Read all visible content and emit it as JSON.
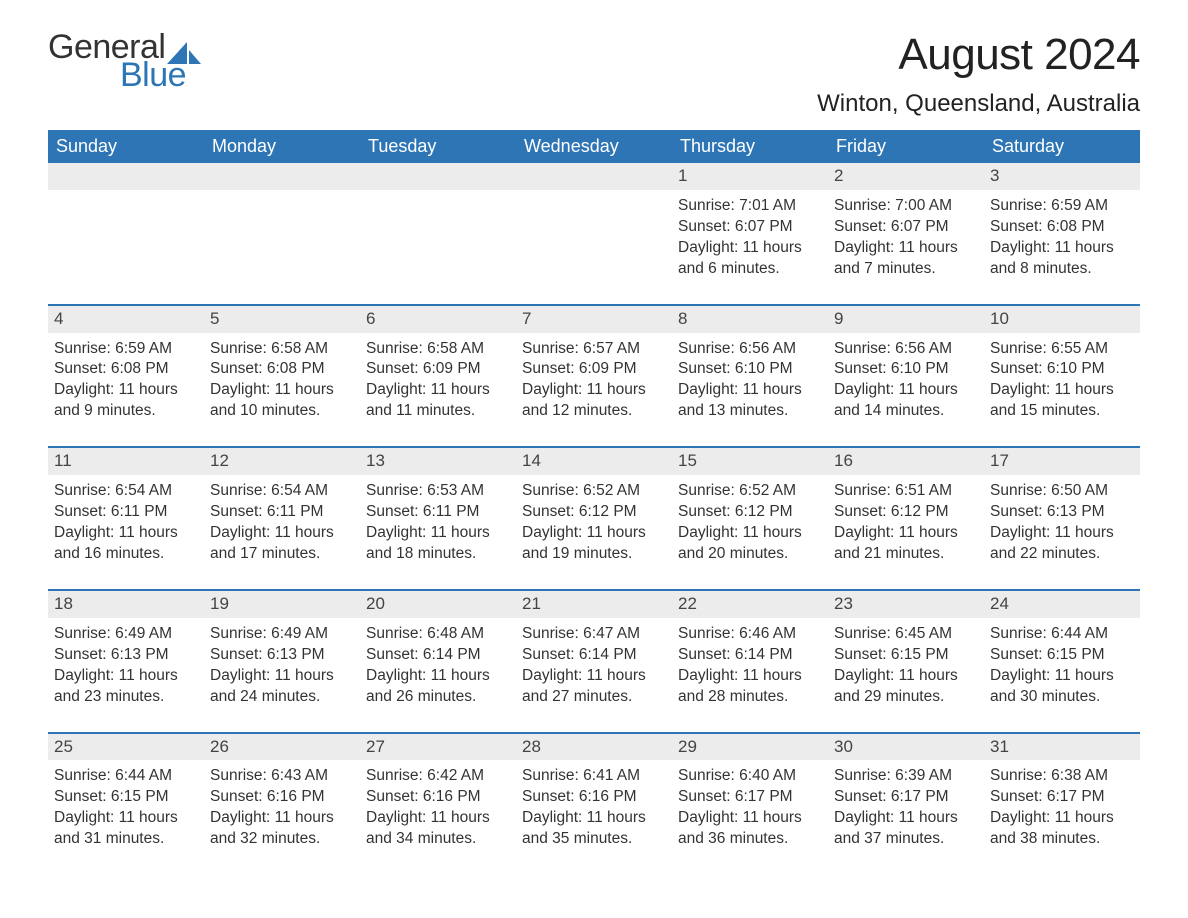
{
  "brand": {
    "general": "General",
    "blue": "Blue",
    "sail_color": "#2e75b6"
  },
  "title": "August 2024",
  "location": "Winton, Queensland, Australia",
  "columns": [
    "Sunday",
    "Monday",
    "Tuesday",
    "Wednesday",
    "Thursday",
    "Friday",
    "Saturday"
  ],
  "colors": {
    "header_bg": "#2e75b6",
    "header_text": "#ffffff",
    "row_divider": "#2e75b6",
    "daynum_bg": "#ececec",
    "body_text": "#333333",
    "background": "#ffffff"
  },
  "weeks": [
    [
      {
        "empty": true
      },
      {
        "empty": true
      },
      {
        "empty": true
      },
      {
        "empty": true
      },
      {
        "day": "1",
        "sunrise": "Sunrise: 7:01 AM",
        "sunset": "Sunset: 6:07 PM",
        "dl1": "Daylight: 11 hours",
        "dl2": "and 6 minutes."
      },
      {
        "day": "2",
        "sunrise": "Sunrise: 7:00 AM",
        "sunset": "Sunset: 6:07 PM",
        "dl1": "Daylight: 11 hours",
        "dl2": "and 7 minutes."
      },
      {
        "day": "3",
        "sunrise": "Sunrise: 6:59 AM",
        "sunset": "Sunset: 6:08 PM",
        "dl1": "Daylight: 11 hours",
        "dl2": "and 8 minutes."
      }
    ],
    [
      {
        "day": "4",
        "sunrise": "Sunrise: 6:59 AM",
        "sunset": "Sunset: 6:08 PM",
        "dl1": "Daylight: 11 hours",
        "dl2": "and 9 minutes."
      },
      {
        "day": "5",
        "sunrise": "Sunrise: 6:58 AM",
        "sunset": "Sunset: 6:08 PM",
        "dl1": "Daylight: 11 hours",
        "dl2": "and 10 minutes."
      },
      {
        "day": "6",
        "sunrise": "Sunrise: 6:58 AM",
        "sunset": "Sunset: 6:09 PM",
        "dl1": "Daylight: 11 hours",
        "dl2": "and 11 minutes."
      },
      {
        "day": "7",
        "sunrise": "Sunrise: 6:57 AM",
        "sunset": "Sunset: 6:09 PM",
        "dl1": "Daylight: 11 hours",
        "dl2": "and 12 minutes."
      },
      {
        "day": "8",
        "sunrise": "Sunrise: 6:56 AM",
        "sunset": "Sunset: 6:10 PM",
        "dl1": "Daylight: 11 hours",
        "dl2": "and 13 minutes."
      },
      {
        "day": "9",
        "sunrise": "Sunrise: 6:56 AM",
        "sunset": "Sunset: 6:10 PM",
        "dl1": "Daylight: 11 hours",
        "dl2": "and 14 minutes."
      },
      {
        "day": "10",
        "sunrise": "Sunrise: 6:55 AM",
        "sunset": "Sunset: 6:10 PM",
        "dl1": "Daylight: 11 hours",
        "dl2": "and 15 minutes."
      }
    ],
    [
      {
        "day": "11",
        "sunrise": "Sunrise: 6:54 AM",
        "sunset": "Sunset: 6:11 PM",
        "dl1": "Daylight: 11 hours",
        "dl2": "and 16 minutes."
      },
      {
        "day": "12",
        "sunrise": "Sunrise: 6:54 AM",
        "sunset": "Sunset: 6:11 PM",
        "dl1": "Daylight: 11 hours",
        "dl2": "and 17 minutes."
      },
      {
        "day": "13",
        "sunrise": "Sunrise: 6:53 AM",
        "sunset": "Sunset: 6:11 PM",
        "dl1": "Daylight: 11 hours",
        "dl2": "and 18 minutes."
      },
      {
        "day": "14",
        "sunrise": "Sunrise: 6:52 AM",
        "sunset": "Sunset: 6:12 PM",
        "dl1": "Daylight: 11 hours",
        "dl2": "and 19 minutes."
      },
      {
        "day": "15",
        "sunrise": "Sunrise: 6:52 AM",
        "sunset": "Sunset: 6:12 PM",
        "dl1": "Daylight: 11 hours",
        "dl2": "and 20 minutes."
      },
      {
        "day": "16",
        "sunrise": "Sunrise: 6:51 AM",
        "sunset": "Sunset: 6:12 PM",
        "dl1": "Daylight: 11 hours",
        "dl2": "and 21 minutes."
      },
      {
        "day": "17",
        "sunrise": "Sunrise: 6:50 AM",
        "sunset": "Sunset: 6:13 PM",
        "dl1": "Daylight: 11 hours",
        "dl2": "and 22 minutes."
      }
    ],
    [
      {
        "day": "18",
        "sunrise": "Sunrise: 6:49 AM",
        "sunset": "Sunset: 6:13 PM",
        "dl1": "Daylight: 11 hours",
        "dl2": "and 23 minutes."
      },
      {
        "day": "19",
        "sunrise": "Sunrise: 6:49 AM",
        "sunset": "Sunset: 6:13 PM",
        "dl1": "Daylight: 11 hours",
        "dl2": "and 24 minutes."
      },
      {
        "day": "20",
        "sunrise": "Sunrise: 6:48 AM",
        "sunset": "Sunset: 6:14 PM",
        "dl1": "Daylight: 11 hours",
        "dl2": "and 26 minutes."
      },
      {
        "day": "21",
        "sunrise": "Sunrise: 6:47 AM",
        "sunset": "Sunset: 6:14 PM",
        "dl1": "Daylight: 11 hours",
        "dl2": "and 27 minutes."
      },
      {
        "day": "22",
        "sunrise": "Sunrise: 6:46 AM",
        "sunset": "Sunset: 6:14 PM",
        "dl1": "Daylight: 11 hours",
        "dl2": "and 28 minutes."
      },
      {
        "day": "23",
        "sunrise": "Sunrise: 6:45 AM",
        "sunset": "Sunset: 6:15 PM",
        "dl1": "Daylight: 11 hours",
        "dl2": "and 29 minutes."
      },
      {
        "day": "24",
        "sunrise": "Sunrise: 6:44 AM",
        "sunset": "Sunset: 6:15 PM",
        "dl1": "Daylight: 11 hours",
        "dl2": "and 30 minutes."
      }
    ],
    [
      {
        "day": "25",
        "sunrise": "Sunrise: 6:44 AM",
        "sunset": "Sunset: 6:15 PM",
        "dl1": "Daylight: 11 hours",
        "dl2": "and 31 minutes."
      },
      {
        "day": "26",
        "sunrise": "Sunrise: 6:43 AM",
        "sunset": "Sunset: 6:16 PM",
        "dl1": "Daylight: 11 hours",
        "dl2": "and 32 minutes."
      },
      {
        "day": "27",
        "sunrise": "Sunrise: 6:42 AM",
        "sunset": "Sunset: 6:16 PM",
        "dl1": "Daylight: 11 hours",
        "dl2": "and 34 minutes."
      },
      {
        "day": "28",
        "sunrise": "Sunrise: 6:41 AM",
        "sunset": "Sunset: 6:16 PM",
        "dl1": "Daylight: 11 hours",
        "dl2": "and 35 minutes."
      },
      {
        "day": "29",
        "sunrise": "Sunrise: 6:40 AM",
        "sunset": "Sunset: 6:17 PM",
        "dl1": "Daylight: 11 hours",
        "dl2": "and 36 minutes."
      },
      {
        "day": "30",
        "sunrise": "Sunrise: 6:39 AM",
        "sunset": "Sunset: 6:17 PM",
        "dl1": "Daylight: 11 hours",
        "dl2": "and 37 minutes."
      },
      {
        "day": "31",
        "sunrise": "Sunrise: 6:38 AM",
        "sunset": "Sunset: 6:17 PM",
        "dl1": "Daylight: 11 hours",
        "dl2": "and 38 minutes."
      }
    ]
  ]
}
